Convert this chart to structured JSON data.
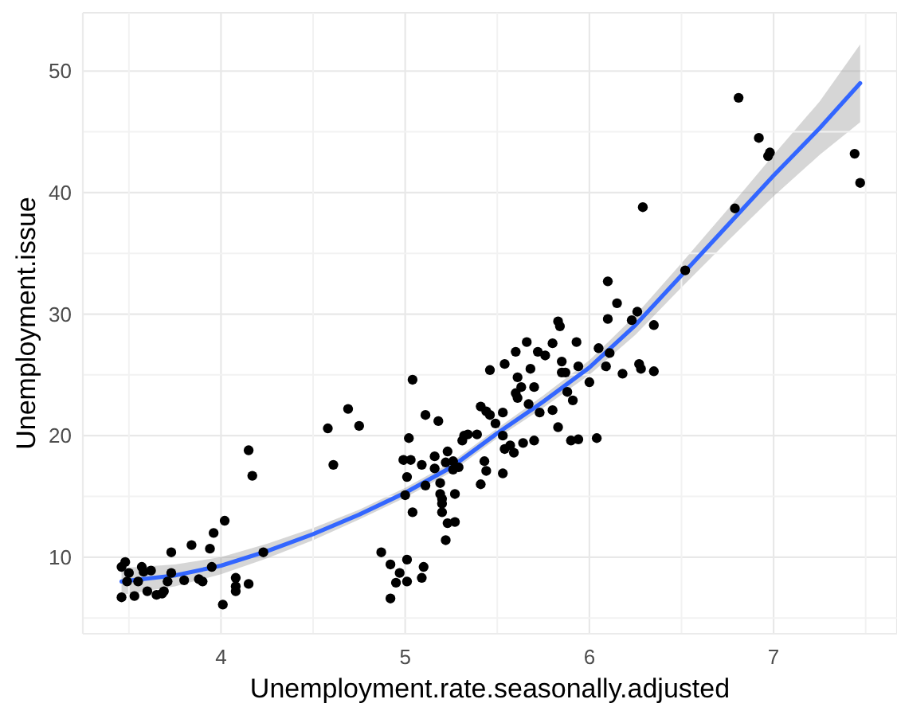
{
  "chart_data": {
    "type": "scatter",
    "xlabel": "Unemployment.rate.seasonally.adjusted",
    "ylabel": "Unemployment.issue",
    "xlim": [
      3.25,
      7.67
    ],
    "ylim": [
      3.7,
      54.8
    ],
    "xticks": [
      4,
      5,
      6,
      7
    ],
    "yticks": [
      10,
      20,
      30,
      40,
      50
    ],
    "grid": true,
    "series": [
      {
        "color": "#000000",
        "marker": "circle",
        "x": [
          3.46,
          3.46,
          3.48,
          3.49,
          3.5,
          3.53,
          3.55,
          3.57,
          3.58,
          3.6,
          3.62,
          3.65,
          3.68,
          3.69,
          3.71,
          3.73,
          3.73,
          3.8,
          3.84,
          3.88,
          3.9,
          3.94,
          3.96,
          3.95,
          4.02,
          4.01,
          4.08,
          4.08,
          4.08,
          4.15,
          4.15,
          4.17,
          4.23,
          4.58,
          4.61,
          4.69,
          4.75,
          4.87,
          4.92,
          4.97,
          4.95,
          5.01,
          5.01,
          4.92,
          5.09,
          5.1,
          5.04,
          5.02,
          4.99,
          5.03,
          5.01,
          5.0,
          5.04,
          5.11,
          5.18,
          5.09,
          5.11,
          5.16,
          5.16,
          5.19,
          5.19,
          5.2,
          5.2,
          5.2,
          5.22,
          5.23,
          5.26,
          5.26,
          5.27,
          5.23,
          5.27,
          5.22,
          5.29,
          5.31,
          5.32,
          5.34,
          5.39,
          5.41,
          5.44,
          5.46,
          5.43,
          5.44,
          5.41,
          5.46,
          5.49,
          5.53,
          5.53,
          5.53,
          5.54,
          5.54,
          5.57,
          5.6,
          5.59,
          5.6,
          5.61,
          5.61,
          5.63,
          5.64,
          5.66,
          5.67,
          5.7,
          5.7,
          5.68,
          5.72,
          5.73,
          5.76,
          5.8,
          5.8,
          5.83,
          5.83,
          5.84,
          5.85,
          5.85,
          5.87,
          5.88,
          5.9,
          5.91,
          5.93,
          5.94,
          5.94,
          6.1,
          6.15,
          6.1,
          6.23,
          6.26,
          6.29,
          6.35,
          6.18,
          6.27,
          6.28,
          6.35,
          6.09,
          6.05,
          6.0,
          6.04,
          6.11,
          6.81,
          6.92,
          6.98,
          6.97,
          7.44,
          7.47,
          6.79,
          6.52
        ],
        "values": [
          6.7,
          9.2,
          9.6,
          8.0,
          8.7,
          6.8,
          8.0,
          9.2,
          8.8,
          7.2,
          8.9,
          6.9,
          7.0,
          7.2,
          8.0,
          10.4,
          8.7,
          8.1,
          11.0,
          8.2,
          8.0,
          10.7,
          12.0,
          9.2,
          13.0,
          6.1,
          8.3,
          7.6,
          7.2,
          7.8,
          18.8,
          16.7,
          10.4,
          20.6,
          17.6,
          22.2,
          20.8,
          10.4,
          9.4,
          8.7,
          7.9,
          9.8,
          8.0,
          6.6,
          8.3,
          9.2,
          24.6,
          19.8,
          18.0,
          18.0,
          16.6,
          15.1,
          13.7,
          21.7,
          21.2,
          17.6,
          15.9,
          18.3,
          17.3,
          16.1,
          15.2,
          14.8,
          14.4,
          13.7,
          17.8,
          18.7,
          17.9,
          17.2,
          15.2,
          12.8,
          12.9,
          11.4,
          17.4,
          19.6,
          20.0,
          20.1,
          20.1,
          22.4,
          22.0,
          21.7,
          17.9,
          17.1,
          16.0,
          25.4,
          21.0,
          21.9,
          20.0,
          16.9,
          25.9,
          18.9,
          19.2,
          26.9,
          18.6,
          23.5,
          23.1,
          24.8,
          24.0,
          19.4,
          27.7,
          22.6,
          19.6,
          24.0,
          25.5,
          26.9,
          21.9,
          26.6,
          22.1,
          27.6,
          20.7,
          29.4,
          29.0,
          26.1,
          25.2,
          25.2,
          23.6,
          19.6,
          22.9,
          27.7,
          25.7,
          19.7,
          32.7,
          30.9,
          29.6,
          29.5,
          30.2,
          38.8,
          29.1,
          25.1,
          25.9,
          25.5,
          25.3,
          25.7,
          27.2,
          24.4,
          19.8,
          26.8,
          47.8,
          44.5,
          43.3,
          43.0,
          43.2,
          40.8,
          38.7,
          33.6
        ]
      },
      {
        "type": "line",
        "color": "#3366ff",
        "x": [
          3.46,
          3.75,
          4.0,
          4.25,
          4.5,
          4.75,
          5.0,
          5.25,
          5.5,
          5.75,
          6.0,
          6.25,
          6.5,
          6.75,
          7.0,
          7.25,
          7.47
        ],
        "values": [
          8.0,
          8.5,
          9.3,
          10.5,
          11.9,
          13.5,
          15.3,
          17.4,
          20.2,
          22.8,
          25.6,
          29.1,
          33.2,
          37.3,
          41.4,
          45.3,
          49.0
        ],
        "lower": [
          6.9,
          7.6,
          8.6,
          9.9,
          11.4,
          13.1,
          14.9,
          17.0,
          19.8,
          22.3,
          25.0,
          28.3,
          32.2,
          36.0,
          39.7,
          43.1,
          45.8
        ],
        "upper": [
          9.1,
          9.4,
          10.0,
          11.1,
          12.4,
          13.9,
          15.7,
          17.8,
          20.6,
          23.3,
          26.2,
          29.9,
          34.2,
          38.6,
          43.1,
          47.5,
          52.2
        ]
      }
    ]
  }
}
